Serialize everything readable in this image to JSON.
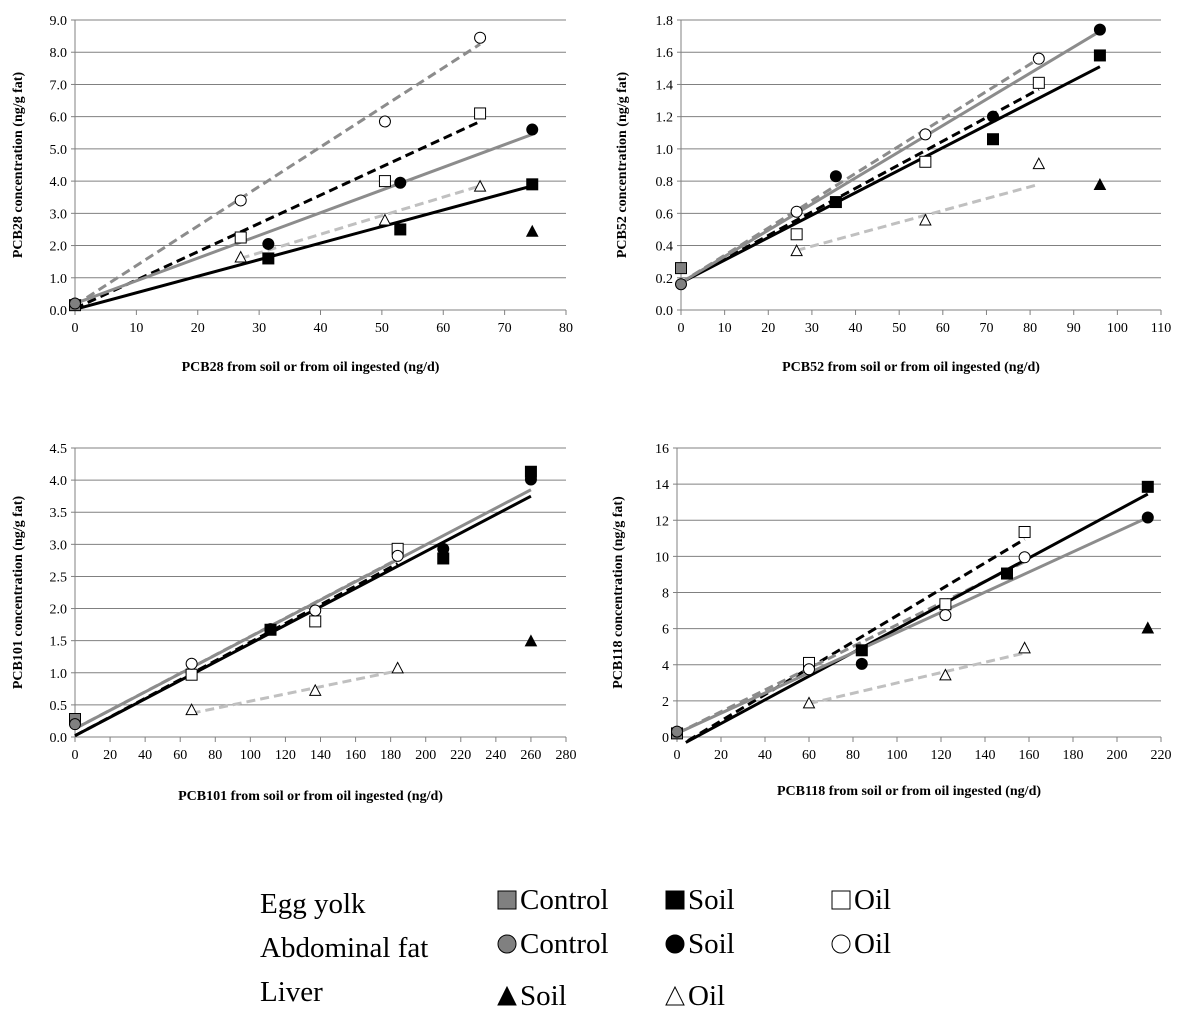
{
  "chart_data": [
    {
      "type": "scatter",
      "xlabel": "PCB28 from soil or from oil ingested (ng/d)",
      "ylabel": "PCB28 concentration (ng/g fat)",
      "xlim": [
        0,
        80
      ],
      "ylim": [
        0,
        9
      ],
      "xticks": [
        "0",
        "10",
        "20",
        "30",
        "40",
        "50",
        "60",
        "70",
        "80"
      ],
      "yticks": [
        "0.0",
        "1.0",
        "2.0",
        "3.0",
        "4.0",
        "5.0",
        "6.0",
        "7.0",
        "8.0",
        "9.0"
      ],
      "grid": "horizontal",
      "series": [
        {
          "key": "egg_control",
          "points": [
            [
              0,
              0.15
            ]
          ]
        },
        {
          "key": "fat_control",
          "points": [
            [
              0,
              0.2
            ]
          ]
        },
        {
          "key": "egg_soil",
          "points": [
            [
              31.5,
              1.6
            ],
            [
              53,
              2.5
            ],
            [
              74.5,
              3.9
            ]
          ],
          "fit": [
            [
              0,
              0.02
            ],
            [
              74.5,
              3.85
            ]
          ]
        },
        {
          "key": "egg_oil",
          "points": [
            [
              27,
              2.25
            ],
            [
              50.5,
              4.0
            ],
            [
              66,
              6.1
            ]
          ],
          "fit": [
            [
              0,
              0.05
            ],
            [
              66,
              5.85
            ]
          ]
        },
        {
          "key": "fat_soil",
          "points": [
            [
              31.5,
              2.05
            ],
            [
              53,
              3.95
            ],
            [
              74.5,
              5.6
            ]
          ],
          "fit": [
            [
              0,
              0.2
            ],
            [
              74.5,
              5.45
            ]
          ]
        },
        {
          "key": "fat_oil",
          "points": [
            [
              27,
              3.4
            ],
            [
              50.5,
              5.85
            ],
            [
              66,
              8.45
            ]
          ],
          "fit": [
            [
              0,
              0.15
            ],
            [
              66,
              8.25
            ]
          ]
        },
        {
          "key": "liver_soil",
          "points": [
            [
              74.5,
              2.45
            ]
          ]
        },
        {
          "key": "liver_oil",
          "points": [
            [
              27,
              1.65
            ],
            [
              50.5,
              2.8
            ],
            [
              66,
              3.85
            ]
          ],
          "fit": [
            [
              27,
              1.6
            ],
            [
              66,
              3.85
            ]
          ]
        }
      ]
    },
    {
      "type": "scatter",
      "xlabel": "PCB52 from soil or from oil ingested (ng/d)",
      "ylabel": "PCB52 concentration (ng/g fat)",
      "xlim": [
        0,
        110
      ],
      "ylim": [
        0,
        1.8
      ],
      "xticks": [
        "0",
        "10",
        "20",
        "30",
        "40",
        "50",
        "60",
        "70",
        "80",
        "90",
        "100",
        "110"
      ],
      "yticks": [
        "0.0",
        "0.2",
        "0.4",
        "0.6",
        "0.8",
        "1.0",
        "1.2",
        "1.4",
        "1.6",
        "1.8"
      ],
      "grid": "horizontal",
      "series": [
        {
          "key": "egg_control",
          "points": [
            [
              0,
              0.26
            ]
          ]
        },
        {
          "key": "fat_control",
          "points": [
            [
              0,
              0.16
            ]
          ]
        },
        {
          "key": "egg_soil",
          "points": [
            [
              35.5,
              0.67
            ],
            [
              71.5,
              1.06
            ],
            [
              96,
              1.58
            ]
          ],
          "fit": [
            [
              0,
              0.17
            ],
            [
              96,
              1.51
            ]
          ]
        },
        {
          "key": "egg_oil",
          "points": [
            [
              26.5,
              0.47
            ],
            [
              56,
              0.92
            ],
            [
              82,
              1.41
            ]
          ],
          "fit": [
            [
              0,
              0.17
            ],
            [
              82,
              1.37
            ]
          ]
        },
        {
          "key": "fat_soil",
          "points": [
            [
              35.5,
              0.83
            ],
            [
              71.5,
              1.2
            ],
            [
              96,
              1.74
            ]
          ],
          "fit": [
            [
              0,
              0.17
            ],
            [
              96,
              1.73
            ]
          ]
        },
        {
          "key": "fat_oil",
          "points": [
            [
              26.5,
              0.61
            ],
            [
              56,
              1.09
            ],
            [
              82,
              1.56
            ]
          ],
          "fit": [
            [
              0,
              0.17
            ],
            [
              82,
              1.56
            ]
          ]
        },
        {
          "key": "liver_soil",
          "points": [
            [
              96,
              0.78
            ]
          ]
        },
        {
          "key": "liver_oil",
          "points": [
            [
              26.5,
              0.37
            ],
            [
              56,
              0.56
            ],
            [
              82,
              0.91
            ]
          ],
          "fit": [
            [
              26.5,
              0.37
            ],
            [
              82,
              0.78
            ]
          ]
        }
      ]
    },
    {
      "type": "scatter",
      "xlabel": "PCB101 from soil or from oil ingested (ng/d)",
      "ylabel": "PCB101 concentration (ng/g fat)",
      "xlim": [
        0,
        280
      ],
      "ylim": [
        0,
        4.5
      ],
      "xticks": [
        "0",
        "20",
        "40",
        "60",
        "80",
        "100",
        "120",
        "140",
        "160",
        "180",
        "200",
        "220",
        "240",
        "260",
        "280"
      ],
      "yticks": [
        "0.0",
        "0.5",
        "1.0",
        "1.5",
        "2.0",
        "2.5",
        "3.0",
        "3.5",
        "4.0",
        "4.5"
      ],
      "grid": "horizontal",
      "series": [
        {
          "key": "egg_control",
          "points": [
            [
              0,
              0.28
            ]
          ]
        },
        {
          "key": "fat_control",
          "points": [
            [
              0,
              0.2
            ]
          ]
        },
        {
          "key": "egg_soil",
          "points": [
            [
              111.5,
              1.67
            ],
            [
              210,
              2.78
            ],
            [
              260,
              4.13
            ]
          ],
          "fit": [
            [
              0,
              0.02
            ],
            [
              260,
              3.75
            ]
          ]
        },
        {
          "key": "egg_oil",
          "points": [
            [
              66.5,
              0.97
            ],
            [
              137,
              1.8
            ],
            [
              184,
              2.93
            ]
          ],
          "fit": [
            [
              0,
              0.02
            ],
            [
              184,
              2.7
            ]
          ]
        },
        {
          "key": "fat_soil",
          "points": [
            [
              111.5,
              1.68
            ],
            [
              210,
              2.93
            ],
            [
              260,
              4.01
            ]
          ],
          "fit": [
            [
              0,
              0.13
            ],
            [
              260,
              3.85
            ]
          ]
        },
        {
          "key": "fat_oil",
          "points": [
            [
              66.5,
              1.14
            ],
            [
              137,
              1.97
            ],
            [
              184,
              2.82
            ]
          ],
          "fit": [
            [
              0,
              0.13
            ],
            [
              184,
              2.77
            ]
          ]
        },
        {
          "key": "liver_soil",
          "points": [
            [
              260,
              1.5
            ]
          ]
        },
        {
          "key": "liver_oil",
          "points": [
            [
              66.5,
              0.43
            ],
            [
              137,
              0.73
            ],
            [
              184,
              1.08
            ]
          ],
          "fit": [
            [
              66.5,
              0.37
            ],
            [
              184,
              1.03
            ]
          ]
        }
      ]
    },
    {
      "type": "scatter",
      "xlabel": "PCB118 from soil or from oil ingested (ng/d)",
      "ylabel": "PCB118 concentration (ng/g fat)",
      "xlim": [
        0,
        220
      ],
      "ylim": [
        0,
        16
      ],
      "xticks": [
        "0",
        "20",
        "40",
        "60",
        "80",
        "100",
        "120",
        "140",
        "160",
        "180",
        "200",
        "220"
      ],
      "yticks": [
        "0",
        "2",
        "4",
        "6",
        "8",
        "10",
        "12",
        "14",
        "16"
      ],
      "grid": "horizontal",
      "series": [
        {
          "key": "egg_control",
          "points": [
            [
              0,
              0.2
            ]
          ]
        },
        {
          "key": "fat_control",
          "points": [
            [
              0,
              0.3
            ]
          ]
        },
        {
          "key": "egg_soil",
          "points": [
            [
              84,
              4.8
            ],
            [
              150,
              9.05
            ],
            [
              214,
              13.85
            ]
          ],
          "fit": [
            [
              4,
              -0.3
            ],
            [
              214,
              13.45
            ]
          ]
        },
        {
          "key": "egg_oil",
          "points": [
            [
              60,
              4.1
            ],
            [
              122,
              7.35
            ],
            [
              158,
              11.35
            ]
          ],
          "fit": [
            [
              5,
              -0.2
            ],
            [
              158,
              10.95
            ]
          ]
        },
        {
          "key": "fat_soil",
          "points": [
            [
              84,
              4.05
            ],
            [
              150,
              9.05
            ],
            [
              214,
              12.15
            ]
          ],
          "fit": [
            [
              0,
              0.2
            ],
            [
              214,
              12.15
            ]
          ]
        },
        {
          "key": "fat_oil",
          "points": [
            [
              60,
              3.75
            ],
            [
              122,
              6.75
            ],
            [
              158,
              9.95
            ]
          ],
          "fit": [
            [
              0,
              0.2
            ],
            [
              158,
              9.7
            ]
          ]
        },
        {
          "key": "liver_soil",
          "points": [
            [
              214,
              6.05
            ]
          ]
        },
        {
          "key": "liver_oil",
          "points": [
            [
              60,
              1.9
            ],
            [
              122,
              3.45
            ],
            [
              158,
              4.95
            ]
          ],
          "fit": [
            [
              60,
              1.85
            ],
            [
              158,
              4.65
            ]
          ]
        }
      ]
    }
  ],
  "styles": {
    "egg_control": {
      "marker": "square",
      "fill": "#808080",
      "stroke": "#000000"
    },
    "fat_control": {
      "marker": "circle",
      "fill": "#808080",
      "stroke": "#000000"
    },
    "egg_soil": {
      "marker": "square",
      "fill": "#000000",
      "stroke": "#000000",
      "line": "#000000",
      "dash": false
    },
    "egg_oil": {
      "marker": "square",
      "fill": "#ffffff",
      "stroke": "#000000",
      "line": "#000000",
      "dash": true
    },
    "fat_soil": {
      "marker": "circle",
      "fill": "#000000",
      "stroke": "#000000",
      "line": "#8c8c8c",
      "dash": false
    },
    "fat_oil": {
      "marker": "circle",
      "fill": "#ffffff",
      "stroke": "#000000",
      "line": "#8c8c8c",
      "dash": true
    },
    "liver_soil": {
      "marker": "triangle",
      "fill": "#000000",
      "stroke": "#000000"
    },
    "liver_oil": {
      "marker": "triangle",
      "fill": "#ffffff",
      "stroke": "#000000",
      "line": "#c0c0c0",
      "dash": true
    }
  },
  "legend": {
    "rows": [
      {
        "label": "Egg yolk",
        "entries": [
          {
            "key": "egg_control",
            "text": "Control"
          },
          {
            "key": "egg_soil",
            "text": "Soil"
          },
          {
            "key": "egg_oil",
            "text": "Oil"
          }
        ]
      },
      {
        "label": "Abdominal fat",
        "entries": [
          {
            "key": "fat_control",
            "text": "Control"
          },
          {
            "key": "fat_soil",
            "text": "Soil"
          },
          {
            "key": "fat_oil",
            "text": "Oil"
          }
        ]
      },
      {
        "label": "Liver",
        "entries": [
          {
            "key": "liver_soil",
            "text": "Soil"
          },
          {
            "key": "liver_oil",
            "text": "Oil"
          }
        ]
      }
    ]
  }
}
